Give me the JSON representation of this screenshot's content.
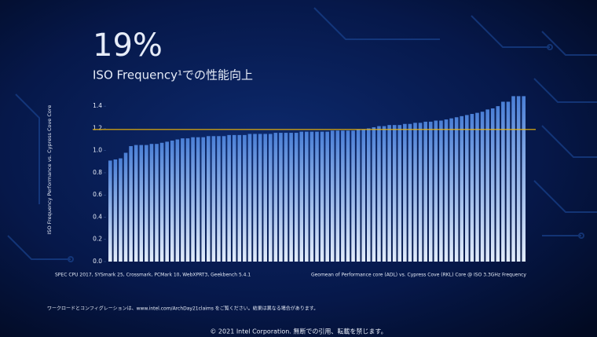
{
  "chart_data": {
    "type": "bar",
    "title": "19%",
    "subtitle": "ISO Frequency¹での性能向上",
    "y_label": "ISO Frequency Performance vs. Cypress Cove Core",
    "values": [
      0.91,
      0.92,
      0.93,
      0.98,
      1.04,
      1.05,
      1.05,
      1.05,
      1.06,
      1.06,
      1.07,
      1.08,
      1.09,
      1.1,
      1.11,
      1.11,
      1.12,
      1.12,
      1.12,
      1.13,
      1.13,
      1.13,
      1.13,
      1.14,
      1.14,
      1.14,
      1.14,
      1.15,
      1.15,
      1.15,
      1.15,
      1.15,
      1.16,
      1.16,
      1.16,
      1.16,
      1.16,
      1.17,
      1.17,
      1.17,
      1.17,
      1.17,
      1.17,
      1.18,
      1.18,
      1.18,
      1.18,
      1.18,
      1.19,
      1.19,
      1.2,
      1.21,
      1.22,
      1.22,
      1.23,
      1.23,
      1.23,
      1.24,
      1.24,
      1.25,
      1.25,
      1.26,
      1.26,
      1.27,
      1.27,
      1.28,
      1.29,
      1.3,
      1.31,
      1.32,
      1.33,
      1.34,
      1.35,
      1.37,
      1.38,
      1.4,
      1.44,
      1.44,
      1.49,
      1.49,
      1.49
    ],
    "color": "#4a7fd6",
    "ylim": [
      0,
      1.5
    ],
    "yticks": [
      {
        "value": 0,
        "label": "0.0"
      },
      {
        "value": 0.2,
        "label": "0.2"
      },
      {
        "value": 0.4,
        "label": "0.4"
      },
      {
        "value": 0.6,
        "label": "0.6"
      },
      {
        "value": 0.8,
        "label": "0.8"
      },
      {
        "value": 1.0,
        "label": "1.0"
      },
      {
        "value": 1.2,
        "label": "1.2"
      },
      {
        "value": 1.4,
        "label": "1.4"
      }
    ],
    "reference_line": {
      "value": 1.19,
      "color": "#f2b705"
    },
    "notes": [
      "SPEC CPU 2017, SYSmark 25, Crossmark, PCMark 10, WebXPRT3, Geekbench 5.4.1",
      "Geomean of Performance core (ADL) vs. Cypress Cove (RKL) Core @ ISO 3.3GHz Frequency"
    ],
    "footnote": "ワークロードとコンフィグレーションは、www.intel.com/ArchDay21claims をご覧ください。結果は異なる場合があります。",
    "copyright": "© 2021 Intel Corporation. 無断での引用、転載を禁じます。"
  }
}
